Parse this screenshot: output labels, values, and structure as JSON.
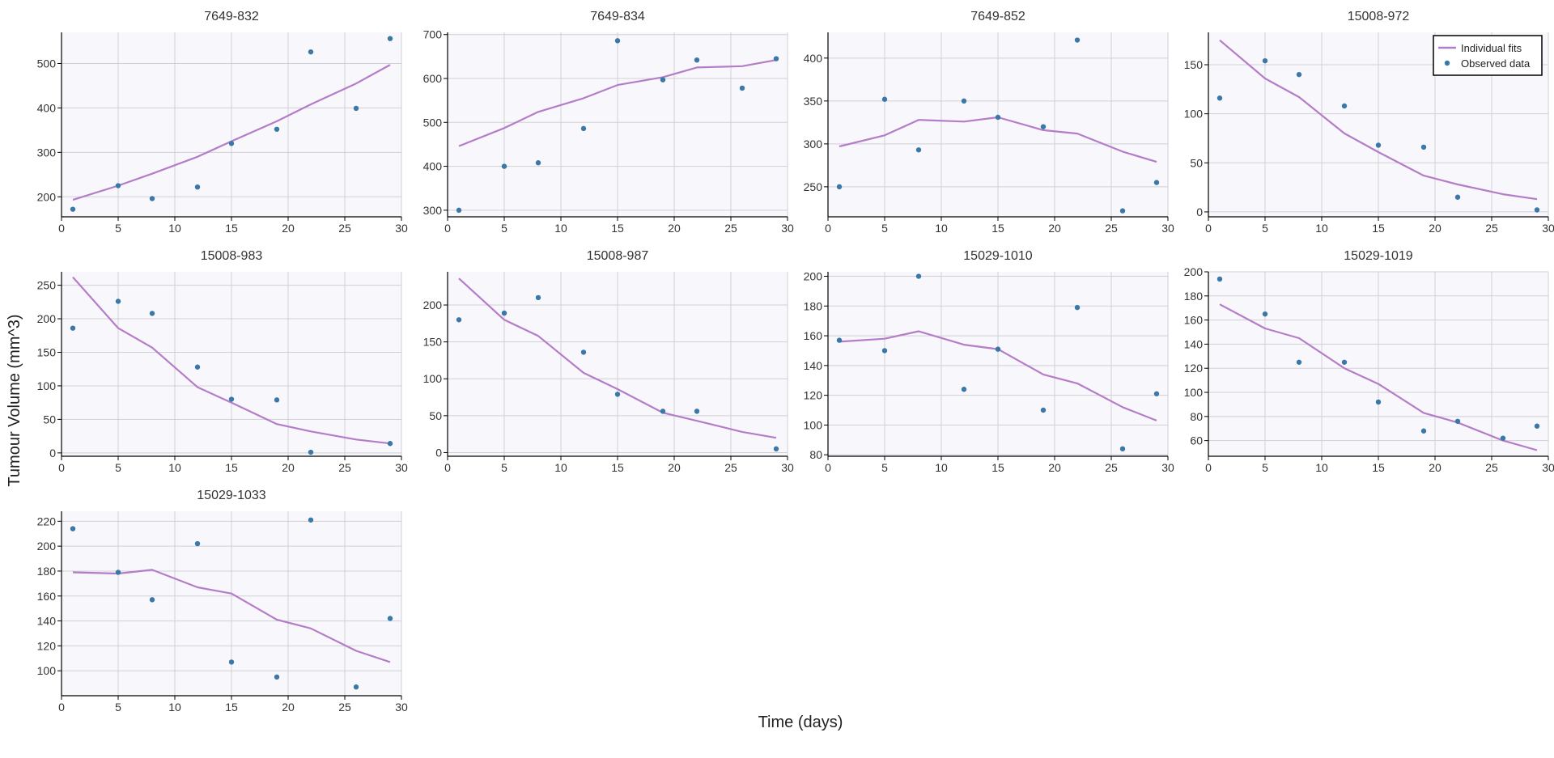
{
  "figure": {
    "xlabel": "Time (days)",
    "ylabel": "Tumour Volume (mm^3)",
    "legend": {
      "placement": "top-right of panel 15008-972",
      "items": [
        "Individual fits",
        "Observed data"
      ]
    },
    "colors": {
      "fit": "#b57cc8",
      "observed": "#3a78a8",
      "plot_bg": "#f8f8fc",
      "grid": "#cfcfd6",
      "axis": "#000000"
    }
  },
  "chart_data": [
    {
      "type": "scatter",
      "title": "7649-832",
      "xlim": [
        0,
        30
      ],
      "ylim": [
        155,
        570
      ],
      "xticks": [
        0,
        5,
        10,
        15,
        20,
        25,
        30
      ],
      "yticks": [
        200,
        300,
        400,
        500
      ],
      "observed": {
        "x": [
          1,
          5,
          8,
          12,
          15,
          19,
          22,
          26,
          29
        ],
        "y": [
          172,
          225,
          196,
          222,
          320,
          352,
          526,
          399,
          556
        ]
      },
      "fit": {
        "x": [
          1,
          5,
          8,
          12,
          15,
          19,
          22,
          26,
          29
        ],
        "y": [
          193,
          225,
          252,
          290,
          325,
          370,
          408,
          455,
          497
        ]
      }
    },
    {
      "type": "scatter",
      "title": "7649-834",
      "xlim": [
        0,
        30
      ],
      "ylim": [
        285,
        705
      ],
      "xticks": [
        0,
        5,
        10,
        15,
        20,
        25,
        30
      ],
      "yticks": [
        300,
        400,
        500,
        600,
        700
      ],
      "observed": {
        "x": [
          1,
          5,
          8,
          12,
          15,
          19,
          22,
          26,
          29
        ],
        "y": [
          300,
          400,
          408,
          486,
          686,
          597,
          642,
          578,
          645
        ]
      },
      "fit": {
        "x": [
          1,
          5,
          8,
          12,
          15,
          19,
          22,
          26,
          29
        ],
        "y": [
          446,
          487,
          524,
          555,
          585,
          603,
          625,
          628,
          642
        ]
      }
    },
    {
      "type": "scatter",
      "title": "7649-852",
      "xlim": [
        0,
        30
      ],
      "ylim": [
        215,
        430
      ],
      "xticks": [
        0,
        5,
        10,
        15,
        20,
        25,
        30
      ],
      "yticks": [
        250,
        300,
        350,
        400
      ],
      "observed": {
        "x": [
          1,
          5,
          8,
          12,
          15,
          19,
          22,
          26,
          29
        ],
        "y": [
          250,
          352,
          293,
          350,
          331,
          320,
          421,
          222,
          255
        ]
      },
      "fit": {
        "x": [
          1,
          5,
          8,
          12,
          15,
          19,
          22,
          26,
          29
        ],
        "y": [
          297,
          310,
          328,
          326,
          331,
          316,
          312,
          291,
          279
        ]
      }
    },
    {
      "type": "scatter",
      "title": "15008-972",
      "xlim": [
        0,
        30
      ],
      "ylim": [
        -5,
        183
      ],
      "xticks": [
        0,
        5,
        10,
        15,
        20,
        25,
        30
      ],
      "yticks": [
        0,
        50,
        100,
        150
      ],
      "observed": {
        "x": [
          1,
          5,
          8,
          12,
          15,
          19,
          22,
          26,
          29
        ],
        "y": [
          116,
          154,
          140,
          108,
          68,
          66,
          15,
          null,
          2
        ]
      },
      "fit": {
        "x": [
          1,
          5,
          8,
          12,
          15,
          19,
          22,
          26,
          29
        ],
        "y": [
          175,
          136,
          117,
          80,
          61,
          37,
          28,
          18,
          13
        ]
      }
    },
    {
      "type": "scatter",
      "title": "15008-983",
      "xlim": [
        0,
        30
      ],
      "ylim": [
        -5,
        270
      ],
      "xticks": [
        0,
        5,
        10,
        15,
        20,
        25,
        30
      ],
      "yticks": [
        0,
        50,
        100,
        150,
        200,
        250
      ],
      "observed": {
        "x": [
          1,
          5,
          8,
          12,
          15,
          19,
          22,
          26,
          29
        ],
        "y": [
          186,
          226,
          208,
          128,
          80,
          79,
          1,
          null,
          14
        ]
      },
      "fit": {
        "x": [
          1,
          5,
          8,
          12,
          15,
          19,
          22,
          26,
          29
        ],
        "y": [
          262,
          186,
          157,
          98,
          75,
          43,
          32,
          20,
          14
        ]
      }
    },
    {
      "type": "scatter",
      "title": "15008-987",
      "xlim": [
        0,
        30
      ],
      "ylim": [
        -5,
        245
      ],
      "xticks": [
        0,
        5,
        10,
        15,
        20,
        25,
        30
      ],
      "yticks": [
        0,
        50,
        100,
        150,
        200
      ],
      "observed": {
        "x": [
          1,
          5,
          8,
          12,
          15,
          19,
          22,
          26,
          29
        ],
        "y": [
          180,
          189,
          210,
          136,
          79,
          56,
          56,
          null,
          5
        ]
      },
      "fit": {
        "x": [
          1,
          5,
          8,
          12,
          15,
          19,
          22,
          26,
          29
        ],
        "y": [
          236,
          180,
          158,
          108,
          86,
          54,
          43,
          28,
          20
        ]
      }
    },
    {
      "type": "scatter",
      "title": "15029-1010",
      "xlim": [
        0,
        30
      ],
      "ylim": [
        79,
        203
      ],
      "xticks": [
        0,
        5,
        10,
        15,
        20,
        25,
        30
      ],
      "yticks": [
        80,
        100,
        120,
        140,
        160,
        180,
        200
      ],
      "observed": {
        "x": [
          1,
          5,
          8,
          12,
          15,
          19,
          22,
          26,
          29
        ],
        "y": [
          157,
          150,
          200,
          124,
          151,
          110,
          179,
          84,
          121
        ]
      },
      "fit": {
        "x": [
          1,
          5,
          8,
          12,
          15,
          19,
          22,
          26,
          29
        ],
        "y": [
          156,
          158,
          163,
          154,
          151,
          134,
          128,
          112,
          103
        ]
      }
    },
    {
      "type": "scatter",
      "title": "15029-1019",
      "xlim": [
        0,
        30
      ],
      "ylim": [
        47,
        200
      ],
      "xticks": [
        0,
        5,
        10,
        15,
        20,
        25,
        30
      ],
      "yticks": [
        60,
        80,
        100,
        120,
        140,
        160,
        180,
        200
      ],
      "observed": {
        "x": [
          1,
          5,
          8,
          12,
          15,
          19,
          22,
          26,
          29
        ],
        "y": [
          194,
          165,
          125,
          125,
          92,
          68,
          76,
          62,
          72
        ]
      },
      "fit": {
        "x": [
          1,
          5,
          8,
          12,
          15,
          19,
          22,
          26,
          29
        ],
        "y": [
          173,
          153,
          145,
          120,
          107,
          83,
          75,
          60,
          52
        ]
      }
    },
    {
      "type": "scatter",
      "title": "15029-1033",
      "xlim": [
        0,
        30
      ],
      "ylim": [
        80,
        228
      ],
      "xticks": [
        0,
        5,
        10,
        15,
        20,
        25,
        30
      ],
      "yticks": [
        100,
        120,
        140,
        160,
        180,
        200,
        220
      ],
      "observed": {
        "x": [
          1,
          5,
          8,
          12,
          15,
          19,
          22,
          26,
          29
        ],
        "y": [
          214,
          179,
          157,
          202,
          107,
          95,
          221,
          87,
          142
        ]
      },
      "fit": {
        "x": [
          1,
          5,
          8,
          12,
          15,
          19,
          22,
          26,
          29
        ],
        "y": [
          179,
          178,
          181,
          167,
          162,
          141,
          134,
          116,
          107
        ]
      }
    }
  ]
}
